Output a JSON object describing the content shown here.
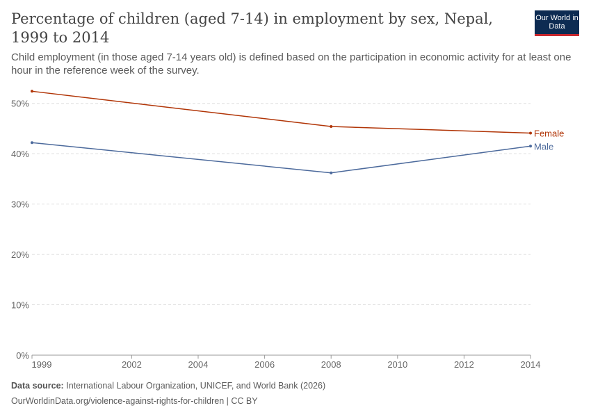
{
  "header": {
    "title": "Percentage of children (aged 7-14) in employment by sex, Nepal, 1999 to 2014",
    "subtitle": "Child employment (in those aged 7-14 years old) is defined based on the participation in economic activity for at least one hour in the reference week of the survey.",
    "logo": "Our World in Data"
  },
  "footer": {
    "source_label": "Data source:",
    "source": "International Labour Organization, UNICEF, and World Bank (2026)",
    "url": "OurWorldinData.org/violence-against-rights-for-children | CC BY"
  },
  "chart_data": {
    "type": "line",
    "title": "Percentage of children (aged 7-14) in employment by sex, Nepal, 1999 to 2014",
    "xlim": [
      1999,
      2014
    ],
    "ylim": [
      0,
      50
    ],
    "x_ticks": [
      1999,
      2002,
      2004,
      2006,
      2008,
      2010,
      2012,
      2014
    ],
    "y_ticks": [
      0,
      10,
      20,
      30,
      40,
      50
    ],
    "y_tick_labels": [
      "0%",
      "10%",
      "20%",
      "30%",
      "40%",
      "50%"
    ],
    "grid": true,
    "legend": "right-inline",
    "series": [
      {
        "name": "Female",
        "color": "#b13507",
        "x": [
          1999,
          2008,
          2014
        ],
        "values": [
          52.4,
          45.4,
          44.1
        ]
      },
      {
        "name": "Male",
        "color": "#4c6a9c",
        "x": [
          1999,
          2008,
          2014
        ],
        "values": [
          42.2,
          36.2,
          41.5
        ]
      }
    ]
  }
}
